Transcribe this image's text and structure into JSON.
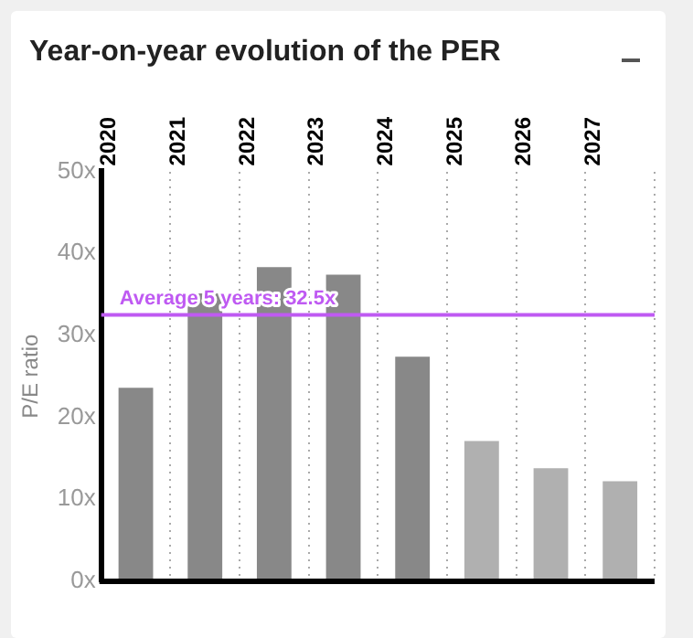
{
  "chart_data": {
    "type": "bar",
    "title": "Year-on-year evolution of the PER",
    "ylabel": "P/E ratio",
    "categories": [
      "2020",
      "2021",
      "2022",
      "2023",
      "2024",
      "2025",
      "2026",
      "2027"
    ],
    "values": [
      23.6,
      35.1,
      38.3,
      37.4,
      27.4,
      17.1,
      13.8,
      12.2
    ],
    "colors": [
      "#888888",
      "#888888",
      "#888888",
      "#888888",
      "#888888",
      "#b0b0b0",
      "#b0b0b0",
      "#b0b0b0"
    ],
    "ylim": [
      0,
      50
    ],
    "yticks": [
      {
        "value": 0,
        "label": "0x"
      },
      {
        "value": 10,
        "label": "10x"
      },
      {
        "value": 20,
        "label": "20x"
      },
      {
        "value": 30,
        "label": "30x"
      },
      {
        "value": 40,
        "label": "40x"
      },
      {
        "value": 50,
        "label": "50x"
      }
    ],
    "ref_lines": [
      {
        "axis": "y",
        "value": 32.5,
        "label": "Average 5 years: 32.5x",
        "color": "#bf5af2"
      }
    ],
    "grid": "x",
    "legend": false
  }
}
